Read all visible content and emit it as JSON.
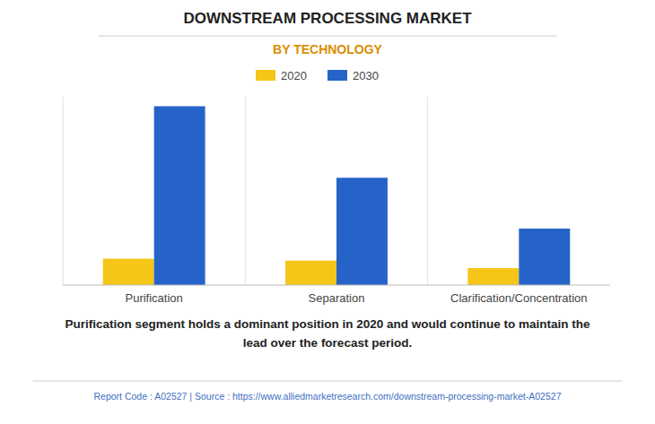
{
  "chart_data": {
    "type": "bar",
    "title": "DOWNSTREAM PROCESSING MARKET",
    "subtitle": "BY TECHNOLOGY",
    "categories": [
      "Purification",
      "Separation",
      "Clarification/Concentration"
    ],
    "series": [
      {
        "name": "2020",
        "color": "#F5C518",
        "values": [
          14,
          13,
          9
        ]
      },
      {
        "name": "2030",
        "color": "#2563C8",
        "values": [
          95,
          57,
          30
        ]
      }
    ],
    "ylim": [
      0,
      100
    ],
    "grid": false,
    "legend": "top",
    "tick_labels": "x",
    "annotations": [
      "Purification segment holds a dominant position in 2020 and would continue to maintain the\nlead over the forecast period.",
      "Report Code : A02527  |  Source : https://www.alliedmarketresearch.com/downstream-processing-market-A02527"
    ]
  }
}
